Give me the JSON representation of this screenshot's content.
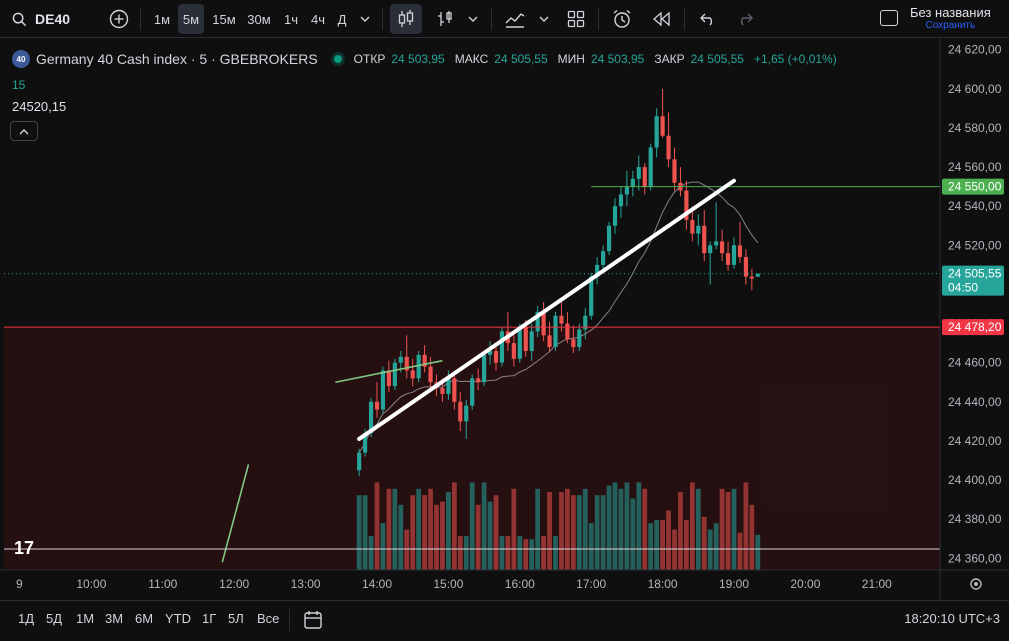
{
  "header": {
    "symbol": "DE40",
    "intervals": [
      "1м",
      "5м",
      "15м",
      "30м",
      "1ч",
      "4ч",
      "Д"
    ],
    "active_interval": "5м",
    "layout_name": "Без названия",
    "save_label": "Сохранить"
  },
  "legend": {
    "badge": "40",
    "title": "Germany 40 Cash index · 5 · GBEBROKERS",
    "open_label": "ОТКР",
    "open": "24 503,95",
    "high_label": "МАКС",
    "high": "24 505,55",
    "low_label": "МИН",
    "low": "24 503,95",
    "close_label": "ЗАКР",
    "close": "24 505,55",
    "change": "+1,65 (+0,01%)",
    "ma_length": "15",
    "ma_value": "24520,15"
  },
  "colors": {
    "up": "#26a69a",
    "down": "#ef5350",
    "resistance": "#4caf50",
    "support": "#f23645",
    "accent": "#2962ff"
  },
  "chart_data": {
    "type": "candlestick",
    "title": "Germany 40 Cash index · 5 · GBEBROKERS",
    "x_ticks": [
      "9",
      "10:00",
      "11:00",
      "12:00",
      "13:00",
      "14:00",
      "15:00",
      "16:00",
      "17:00",
      "18:00",
      "19:00",
      "20:00",
      "21:00"
    ],
    "y_ticks": [
      "24 620,00",
      "24 600,00",
      "24 580,00",
      "24 560,00",
      "24 540,00",
      "24 520,00",
      "24 500,00",
      "24 480,00",
      "24 460,00",
      "24 440,00",
      "24 420,00",
      "24 400,00",
      "24 380,00",
      "24 360,00"
    ],
    "ylim": [
      24354,
      24626
    ],
    "last_price": "24 505,55",
    "countdown": "04:50",
    "horizontal_lines": [
      {
        "label": "24 550,00",
        "value": 24550,
        "color": "#4caf50"
      },
      {
        "label": "24 478,20",
        "value": 24478.2,
        "color": "#f23645"
      }
    ],
    "trendline": {
      "start": {
        "time": "13:45",
        "price": 24421
      },
      "end": {
        "time": "19:00",
        "price": 24553
      }
    },
    "short_line": {
      "start": {
        "time": "13:25",
        "price": 24450
      },
      "end": {
        "time": "14:55",
        "price": 24461
      }
    },
    "early_line": {
      "start": {
        "time": "11:50",
        "price": 24358
      },
      "end": {
        "time": "12:12",
        "price": 24408
      }
    },
    "candles": [
      [
        24405,
        24416,
        24402,
        24414
      ],
      [
        24414,
        24426,
        24412,
        24424
      ],
      [
        24424,
        24442,
        24422,
        24440
      ],
      [
        24440,
        24450,
        24432,
        24436
      ],
      [
        24436,
        24458,
        24434,
        24456
      ],
      [
        24456,
        24461,
        24445,
        24448
      ],
      [
        24448,
        24462,
        24446,
        24460
      ],
      [
        24460,
        24466,
        24455,
        24463
      ],
      [
        24463,
        24474,
        24452,
        24456
      ],
      [
        24456,
        24462,
        24448,
        24452
      ],
      [
        24452,
        24466,
        24450,
        24464
      ],
      [
        24464,
        24469,
        24455,
        24458
      ],
      [
        24458,
        24463,
        24447,
        24450
      ],
      [
        24450,
        24454,
        24443,
        24447
      ],
      [
        24447,
        24452,
        24440,
        24444
      ],
      [
        24444,
        24456,
        24441,
        24452
      ],
      [
        24452,
        24454,
        24436,
        24440
      ],
      [
        24440,
        24445,
        24425,
        24430
      ],
      [
        24430,
        24441,
        24421,
        24438
      ],
      [
        24438,
        24454,
        24436,
        24452
      ],
      [
        24452,
        24457,
        24446,
        24450
      ],
      [
        24450,
        24466,
        24448,
        24464
      ],
      [
        24464,
        24471,
        24459,
        24466
      ],
      [
        24466,
        24470,
        24456,
        24460
      ],
      [
        24460,
        24478,
        24458,
        24476
      ],
      [
        24476,
        24486,
        24466,
        24470
      ],
      [
        24470,
        24474,
        24458,
        24462
      ],
      [
        24462,
        24480,
        24460,
        24478
      ],
      [
        24478,
        24482,
        24463,
        24466
      ],
      [
        24466,
        24480,
        24461,
        24476
      ],
      [
        24476,
        24489,
        24473,
        24486
      ],
      [
        24486,
        24491,
        24471,
        24474
      ],
      [
        24474,
        24481,
        24466,
        24468
      ],
      [
        24468,
        24486,
        24466,
        24484
      ],
      [
        24484,
        24491,
        24476,
        24480
      ],
      [
        24480,
        24486,
        24470,
        24472
      ],
      [
        24472,
        24479,
        24465,
        24468
      ],
      [
        24468,
        24480,
        24466,
        24477
      ],
      [
        24477,
        24488,
        24472,
        24484
      ],
      [
        24484,
        24506,
        24482,
        24504
      ],
      [
        24504,
        24514,
        24500,
        24510
      ],
      [
        24510,
        24520,
        24506,
        24517
      ],
      [
        24517,
        24532,
        24515,
        24530
      ],
      [
        24530,
        24544,
        24526,
        24540
      ],
      [
        24540,
        24550,
        24534,
        24546
      ],
      [
        24546,
        24558,
        24540,
        24550
      ],
      [
        24550,
        24558,
        24545,
        24554
      ],
      [
        24554,
        24566,
        24548,
        24560
      ],
      [
        24560,
        24562,
        24546,
        24550
      ],
      [
        24550,
        24572,
        24548,
        24570
      ],
      [
        24570,
        24590,
        24565,
        24586
      ],
      [
        24586,
        24600,
        24575,
        24576
      ],
      [
        24576,
        24588,
        24560,
        24564
      ],
      [
        24564,
        24570,
        24548,
        24552
      ],
      [
        24552,
        24560,
        24545,
        24548
      ],
      [
        24548,
        24553,
        24528,
        24533
      ],
      [
        24533,
        24540,
        24522,
        24526
      ],
      [
        24526,
        24536,
        24520,
        24530
      ],
      [
        24530,
        24538,
        24512,
        24516
      ],
      [
        24516,
        24522,
        24500,
        24520
      ],
      [
        24520,
        24542,
        24518,
        24522
      ],
      [
        24522,
        24528,
        24512,
        24516
      ],
      [
        24516,
        24522,
        24507,
        24510
      ],
      [
        24510,
        24524,
        24508,
        24520
      ],
      [
        24520,
        24532,
        24511,
        24514
      ],
      [
        24514,
        24518,
        24500,
        24504
      ],
      [
        24504,
        24508,
        24497,
        24503
      ],
      [
        24503.95,
        24505.55,
        24503.95,
        24505.55
      ]
    ]
  },
  "bottom": {
    "ranges": [
      "1Д",
      "5Д",
      "1М",
      "3М",
      "6М",
      "YTD",
      "1Г",
      "5Л",
      "Все"
    ],
    "clock": "18:20:10 UTC+3"
  }
}
